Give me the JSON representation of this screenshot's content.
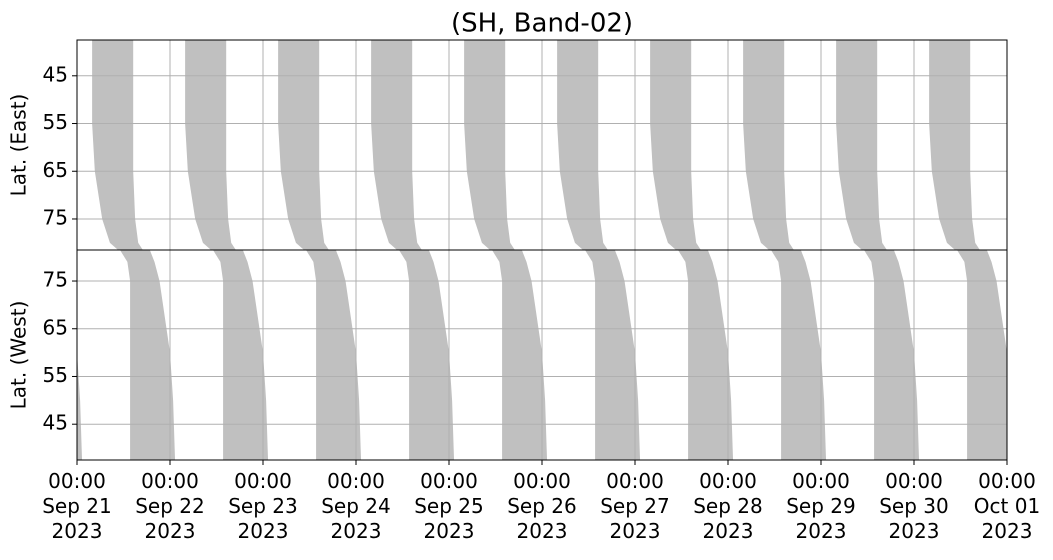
{
  "chart_data": {
    "type": "coverage",
    "title": "(SH, Band-02)",
    "fill_color": "#c0c0c0",
    "grid": true,
    "xlim": [
      0,
      240
    ],
    "xticks": [
      {
        "value": 0,
        "label": [
          "00:00",
          "Sep 21",
          "2023"
        ]
      },
      {
        "value": 24,
        "label": [
          "00:00",
          "Sep 22",
          "2023"
        ]
      },
      {
        "value": 48,
        "label": [
          "00:00",
          "Sep 23",
          "2023"
        ]
      },
      {
        "value": 72,
        "label": [
          "00:00",
          "Sep 24",
          "2023"
        ]
      },
      {
        "value": 96,
        "label": [
          "00:00",
          "Sep 25",
          "2023"
        ]
      },
      {
        "value": 120,
        "label": [
          "00:00",
          "Sep 26",
          "2023"
        ]
      },
      {
        "value": 144,
        "label": [
          "00:00",
          "Sep 27",
          "2023"
        ]
      },
      {
        "value": 168,
        "label": [
          "00:00",
          "Sep 28",
          "2023"
        ]
      },
      {
        "value": 192,
        "label": [
          "00:00",
          "Sep 29",
          "2023"
        ]
      },
      {
        "value": 216,
        "label": [
          "00:00",
          "Sep 30",
          "2023"
        ]
      },
      {
        "value": 240,
        "label": [
          "00:00",
          "Oct 01",
          "2023"
        ]
      }
    ],
    "panels": [
      {
        "ylabel": "Lat. (East)",
        "ylim": [
          81.5,
          37.5
        ],
        "yticks": [
          45,
          55,
          65,
          75
        ],
        "lat": [
          37.5,
          55,
          65,
          75,
          80,
          81.5
        ],
        "left_hours": [
          3.9,
          3.9,
          4.6,
          6.5,
          8.5,
          10.6
        ],
        "right_hours": [
          14.5,
          14.5,
          14.5,
          15.0,
          15.8,
          17
        ],
        "day_offsets": [
          0,
          24,
          48,
          72,
          96,
          120,
          144,
          168,
          192,
          216
        ]
      },
      {
        "ylabel": "Lat. (West)",
        "ylim": [
          37.5,
          81.5
        ],
        "yticks": [
          45,
          55,
          65,
          75
        ],
        "lat": [
          81.5,
          79,
          75,
          70,
          60,
          50,
          37.5
        ],
        "left_hours": [
          11.1,
          13,
          13.7,
          13.7,
          13.7,
          13.7,
          13.7
        ],
        "right_hours": [
          18.8,
          20,
          21.3,
          22.2,
          24,
          24.8,
          25.3
        ],
        "day_offsets": [
          -24,
          0,
          24,
          48,
          72,
          96,
          120,
          144,
          168,
          192,
          216
        ]
      }
    ]
  }
}
